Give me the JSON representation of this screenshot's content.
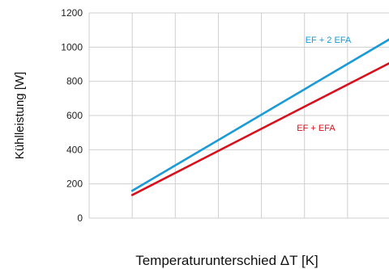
{
  "chart_data": {
    "type": "line",
    "xlabel": "Temperaturunterschied ΔT [K]",
    "ylabel": "Kühlleistung [W]",
    "ylim": [
      0,
      1200
    ],
    "yticks": [
      0,
      200,
      400,
      600,
      800,
      1000,
      1200
    ],
    "xlim": [
      0,
      7
    ],
    "xgrid_count": 7,
    "xtick_labels": [],
    "grid": true,
    "series": [
      {
        "name": "EF + 2 EFA",
        "color": "#1a9ad6",
        "x": [
          1,
          7
        ],
        "y": [
          160,
          1050
        ]
      },
      {
        "name": "EF + EFA",
        "color": "#d8101c",
        "x": [
          1,
          7
        ],
        "y": [
          135,
          910
        ]
      }
    ]
  }
}
